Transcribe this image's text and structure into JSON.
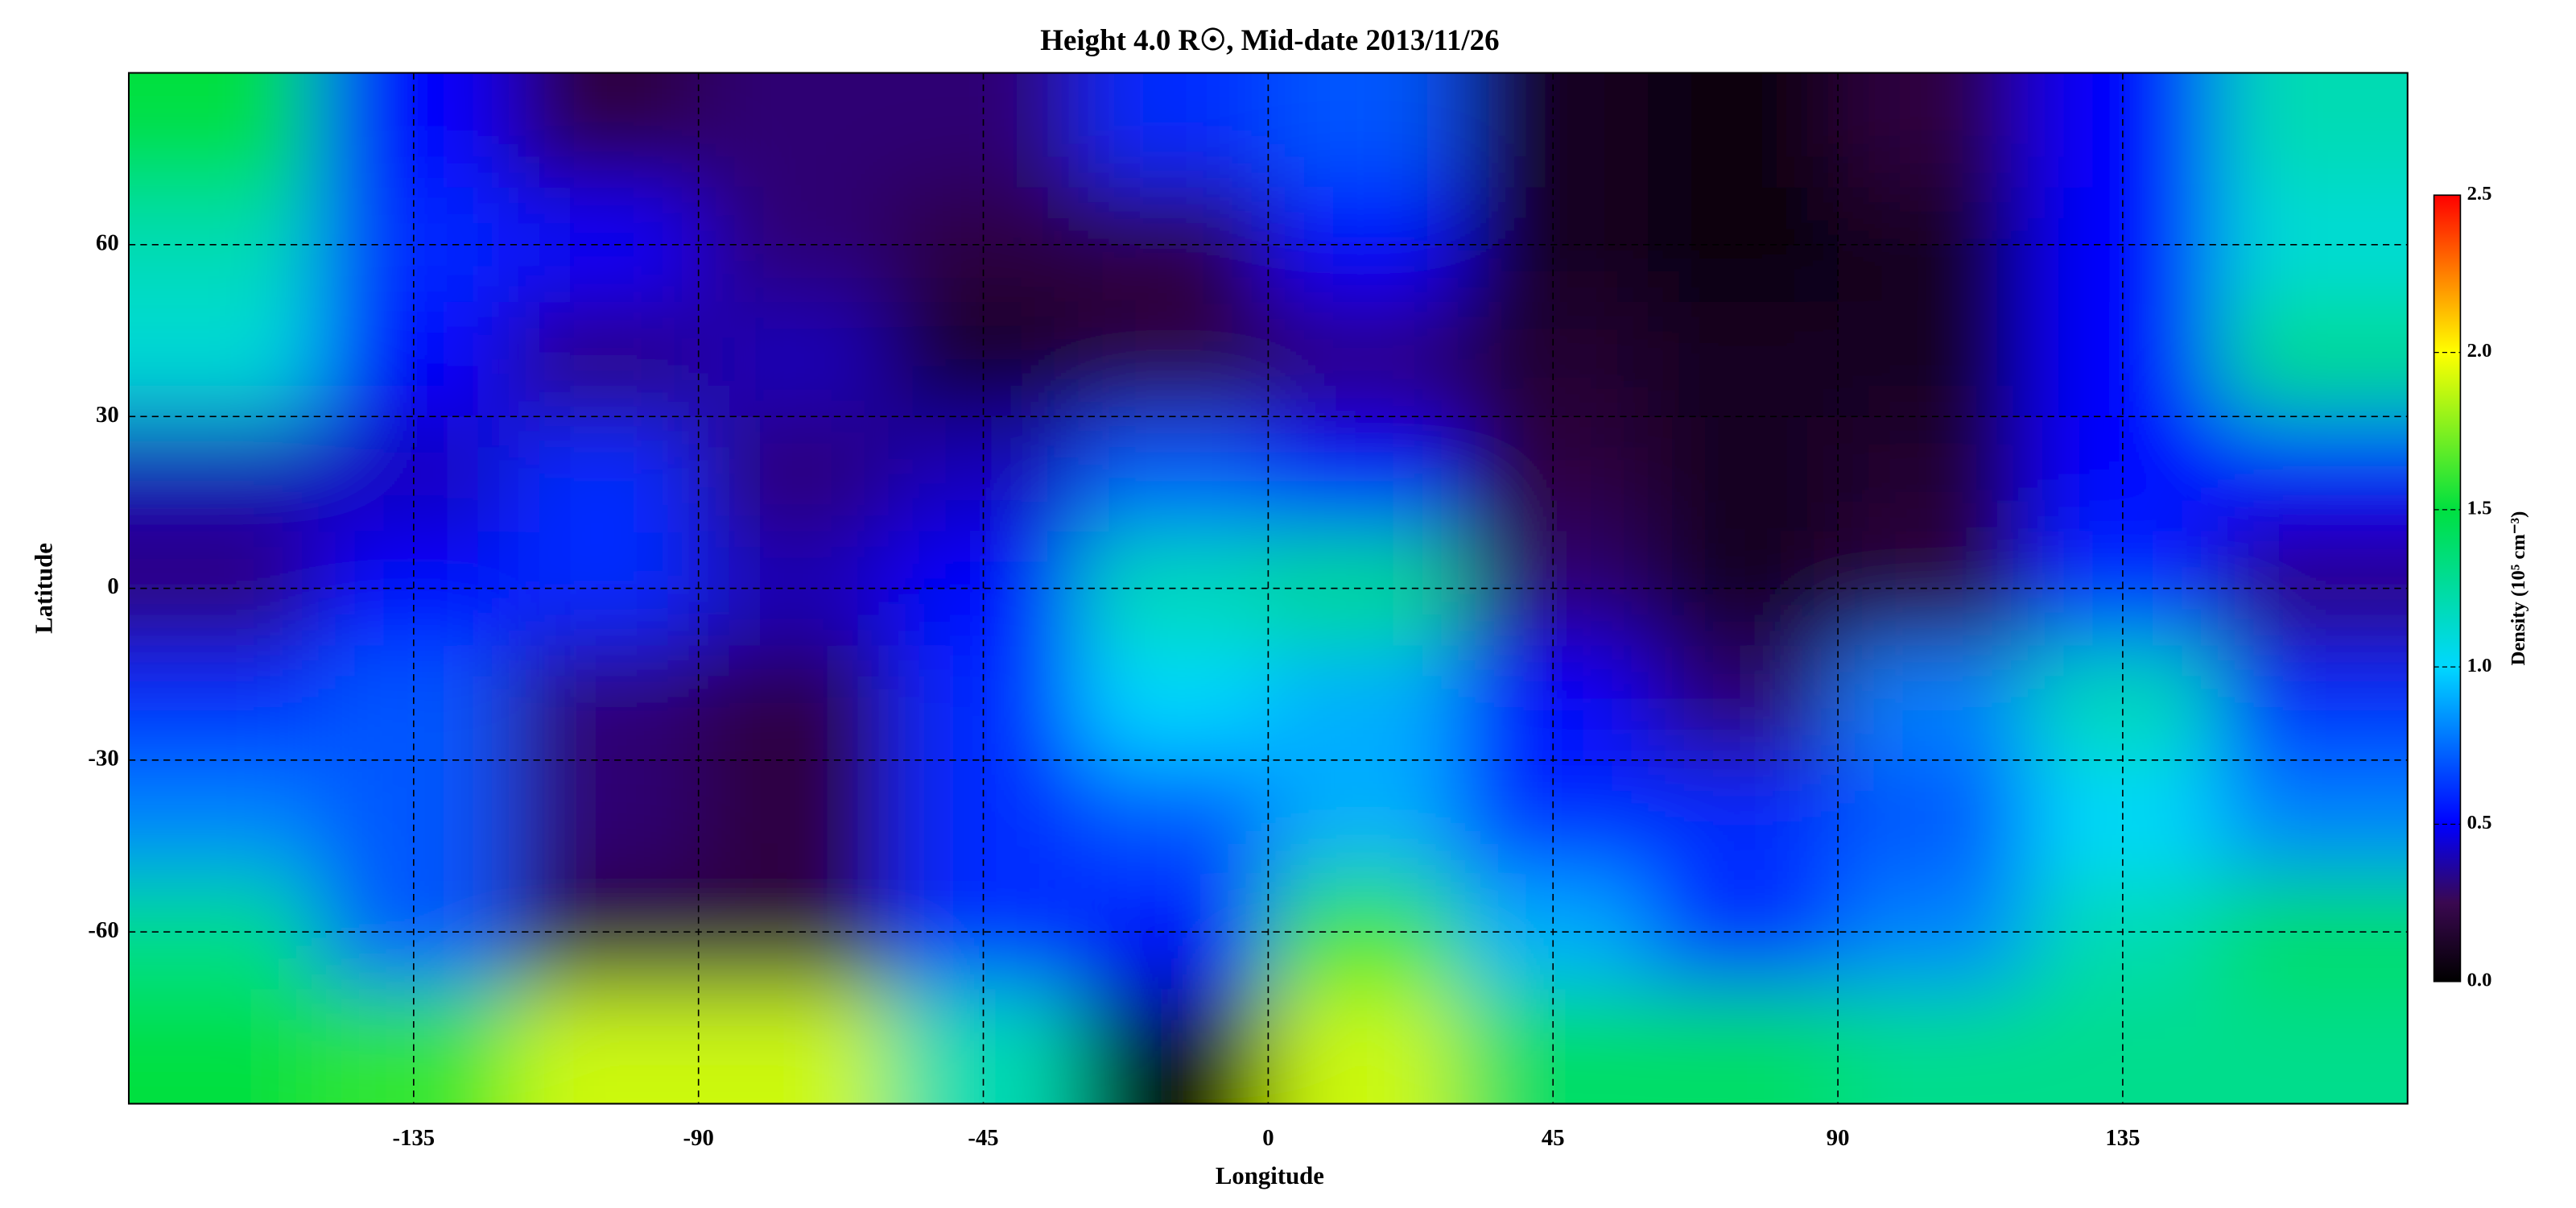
{
  "chart_data": {
    "type": "heatmap",
    "title": "Height 4.0 R☉, Mid-date 2013/11/26",
    "x_label": "Longitude",
    "y_label": "Latitude",
    "colorbar_label": "Density (10⁵ cm⁻³)",
    "x": [
      -165,
      -135,
      -105,
      -75,
      -45,
      -15,
      15,
      45,
      75,
      105,
      135,
      165
    ],
    "y": [
      80,
      60,
      40,
      20,
      0,
      -20,
      -40,
      -60,
      -80
    ],
    "z": [
      [
        1.5,
        0.5,
        0.2,
        0.3,
        0.3,
        0.6,
        0.7,
        0.1,
        0.05,
        0.2,
        0.5,
        1.2
      ],
      [
        1.2,
        0.6,
        0.5,
        0.3,
        0.2,
        0.2,
        0.5,
        0.1,
        0.05,
        0.1,
        0.5,
        1.1
      ],
      [
        1.1,
        0.5,
        0.3,
        0.4,
        0.1,
        0.2,
        0.3,
        0.15,
        0.1,
        0.1,
        0.5,
        1.3
      ],
      [
        0.4,
        0.4,
        0.6,
        0.3,
        0.4,
        0.7,
        0.5,
        0.2,
        0.1,
        0.15,
        0.5,
        0.5
      ],
      [
        0.3,
        0.5,
        0.6,
        0.4,
        0.5,
        1.2,
        1.3,
        0.3,
        0.1,
        0.2,
        0.6,
        0.3
      ],
      [
        0.6,
        0.7,
        0.3,
        0.2,
        0.6,
        1.0,
        0.9,
        0.5,
        0.3,
        0.8,
        1.2,
        0.6
      ],
      [
        0.8,
        0.7,
        0.3,
        0.2,
        0.6,
        0.7,
        0.9,
        0.6,
        0.6,
        0.7,
        1.0,
        0.8
      ],
      [
        1.3,
        0.7,
        0.2,
        0.2,
        0.6,
        0.5,
        1.6,
        0.9,
        0.6,
        0.8,
        1.2,
        1.4
      ],
      [
        1.5,
        1.6,
        1.9,
        1.9,
        1.2,
        0.0,
        1.9,
        1.4,
        1.4,
        1.3,
        1.3,
        1.3
      ]
    ],
    "xlim": [
      -180,
      180
    ],
    "ylim": [
      -90,
      90
    ],
    "xticks": [
      -135,
      -90,
      -45,
      0,
      45,
      90,
      135
    ],
    "yticks": [
      -60,
      -30,
      0,
      30,
      60
    ],
    "zlim": [
      0,
      2.5
    ],
    "zticks": [
      {
        "value": 0,
        "label": "0.0"
      },
      {
        "value": 0.5,
        "label": "0.5"
      },
      {
        "value": 1,
        "label": "1.0"
      },
      {
        "value": 1.5,
        "label": "1.5"
      },
      {
        "value": 2,
        "label": "2.0"
      },
      {
        "value": 2.5,
        "label": "2.5"
      }
    ],
    "colorscale": [
      [
        0,
        "#000000"
      ],
      [
        0.25,
        "#3a0850"
      ],
      [
        0.5,
        "#0000ff"
      ],
      [
        1,
        "#00d8ff"
      ],
      [
        1.5,
        "#00e040"
      ],
      [
        2,
        "#ffff00"
      ],
      [
        2.5,
        "#ff0000"
      ]
    ],
    "grid": true
  }
}
